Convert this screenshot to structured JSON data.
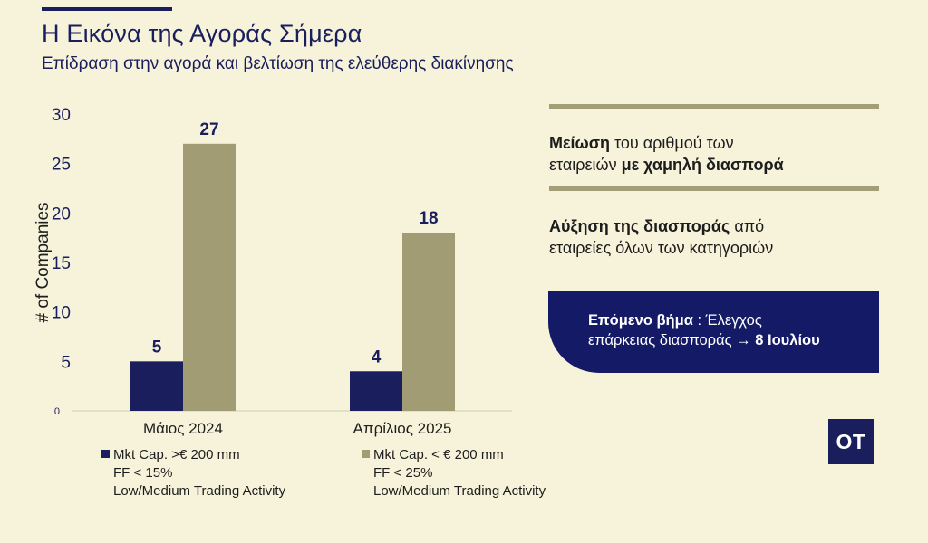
{
  "header": {
    "title": "Η Εικόνα της Αγοράς Σήμερα",
    "subtitle": "Επίδραση στην αγορά και βελτίωση της ελεύθερης διακίνησης"
  },
  "chart_data": {
    "type": "bar",
    "categories": [
      "Μάιος 2024",
      "Απρίλιος 2025"
    ],
    "series": [
      {
        "name": "Mkt Cap. >€ 200 mm FF < 15% Low/Medium Trading Activity",
        "values": [
          5,
          4
        ],
        "color": "#1a1e5c"
      },
      {
        "name": "Mkt Cap. < € 200 mm FF < 25% Low/Medium Trading Activity",
        "values": [
          27,
          18
        ],
        "color": "#a29c74"
      }
    ],
    "data_labels": [
      "5",
      "27",
      "4",
      "18"
    ],
    "ylabel": "# of Companies",
    "ylim": [
      0,
      30
    ],
    "yticks": [
      "0",
      "5",
      "10",
      "15",
      "20",
      "25",
      "30"
    ],
    "grid": false,
    "legend_position": "bottom"
  },
  "legend": [
    {
      "line1": "Mkt Cap. >€ 200 mm",
      "line2": "FF < 15%",
      "line3": "Low/Medium Trading Activity",
      "color": "#1a1e5c"
    },
    {
      "line1": "Mkt Cap. < € 200 mm",
      "line2": "FF < 25%",
      "line3": "Low/Medium Trading Activity",
      "color": "#a29c74"
    }
  ],
  "panel": {
    "point1": {
      "bold": "Μείωση",
      "rest1": " του αριθμού των",
      "line2_plain": "εταιρειών ",
      "line2_bold": "με χαμηλή διασπορά"
    },
    "point2": {
      "bold": "Αύξηση της διασποράς",
      "rest1": " από",
      "line2": "εταιρείες όλων των κατηγοριών"
    },
    "next_step": {
      "bold": "Επόμενο βήμα",
      "sep": " : Έλεγχος",
      "line2": "επάρκειας διασποράς",
      "arrow": " → ",
      "date": "8 Ιουλίου"
    }
  },
  "logo": {
    "text": "OT"
  }
}
